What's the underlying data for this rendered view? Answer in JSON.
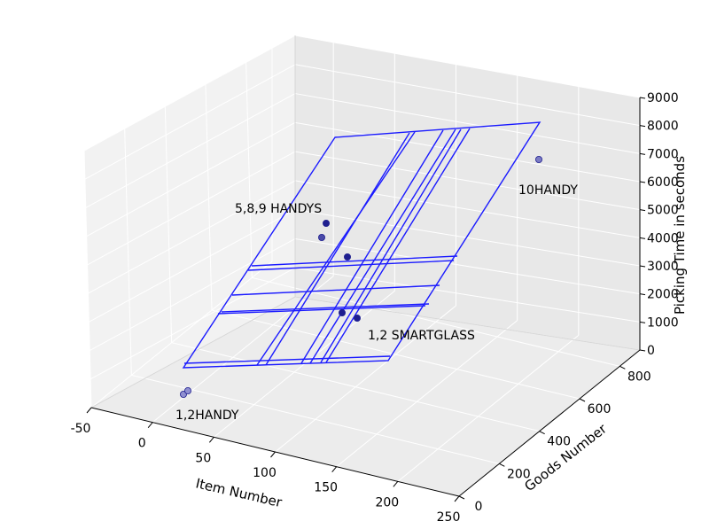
{
  "chart_data": {
    "type": "scatter",
    "projection": "3d",
    "xlabel": "Item Number",
    "ylabel": "Goods Number",
    "zlabel": "Picking Time in seconds",
    "x_ticks": [
      "-50",
      "0",
      "50",
      "100",
      "150",
      "200",
      "250"
    ],
    "y_ticks": [
      "0",
      "200",
      "400",
      "600",
      "800"
    ],
    "z_ticks": [
      "0",
      "1000",
      "2000",
      "3000",
      "4000",
      "5000",
      "6000",
      "7000",
      "8000",
      "9000"
    ],
    "xlim": [
      -50,
      250
    ],
    "ylim": [
      0,
      900
    ],
    "zlim": [
      0,
      9000
    ],
    "grid": true,
    "point_color": "#1f1f8f",
    "surface_color": "#1a1aff",
    "pane_color": "#f2f2f2",
    "annotations": [
      {
        "text": "5,8,9   HANDYS"
      },
      {
        "text": "10HANDY"
      },
      {
        "text": "1,2   SMARTGLASS"
      },
      {
        "text": "1,2HANDY"
      }
    ]
  }
}
